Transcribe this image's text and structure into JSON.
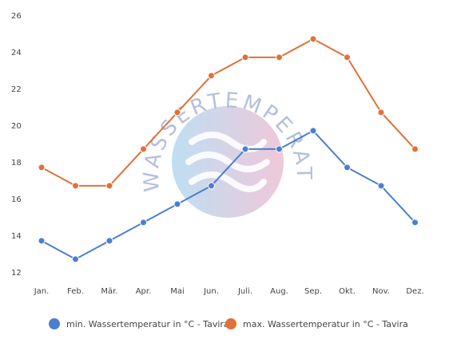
{
  "chart_data": {
    "type": "line",
    "categories": [
      "Jan.",
      "Feb.",
      "Mär.",
      "Apr.",
      "Mai",
      "Jun.",
      "Juli.",
      "Aug.",
      "Sep.",
      "Okt.",
      "Nov.",
      "Dez."
    ],
    "series": [
      {
        "name": "min. Wassertemperatur in °C - Tavira",
        "values": [
          13.7,
          12.7,
          13.7,
          14.7,
          15.7,
          16.7,
          18.7,
          18.7,
          19.7,
          17.7,
          16.7,
          14.7
        ],
        "color": "#4a7fcf"
      },
      {
        "name": "max. Wassertemperatur in °C - Tavira",
        "values": [
          17.7,
          16.7,
          16.7,
          18.7,
          20.7,
          22.7,
          23.7,
          23.7,
          24.7,
          23.7,
          20.7,
          18.7
        ],
        "color": "#e07138"
      }
    ],
    "ylim": [
      12,
      26
    ],
    "yticks": [
      "12",
      "14",
      "16",
      "18",
      "20",
      "22",
      "24",
      "26"
    ],
    "grid": false,
    "legend": "bottom"
  },
  "watermark": {
    "text": "WASSERTEMPERATUR.ORG"
  }
}
